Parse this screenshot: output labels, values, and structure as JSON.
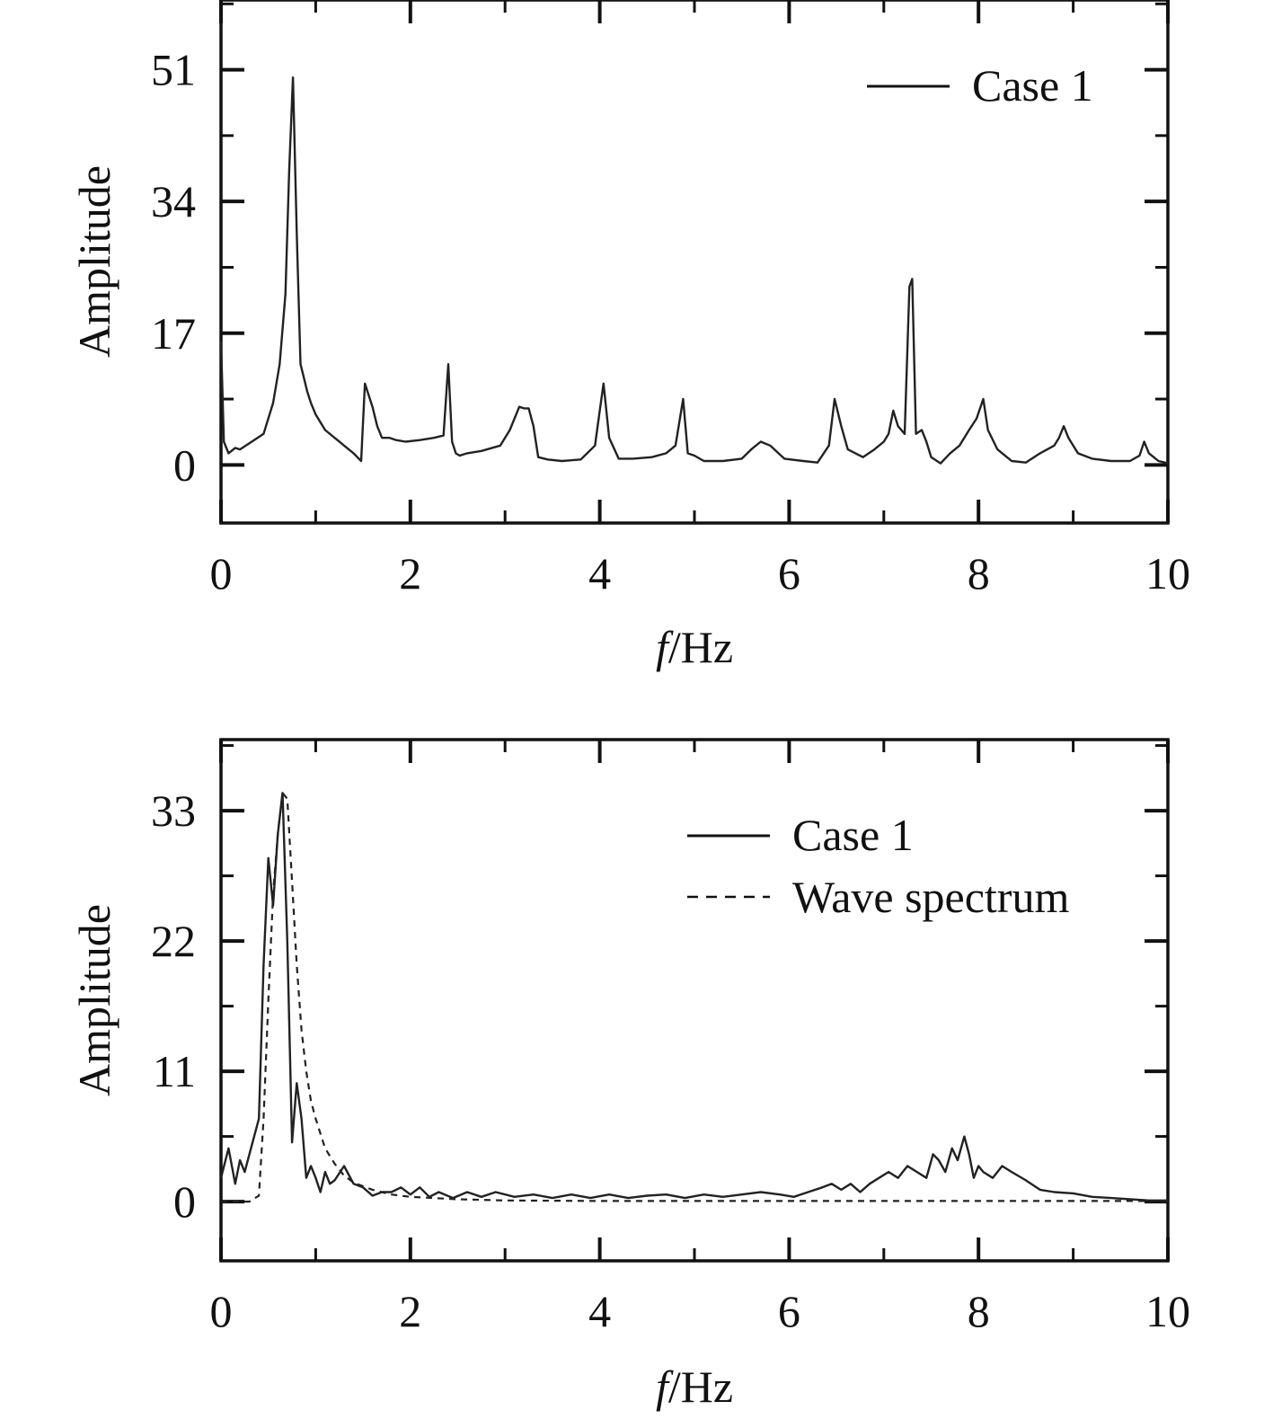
{
  "chart_data": [
    {
      "type": "line",
      "title": "",
      "xlabel_italic": "f",
      "xlabel_rest": "/Hz",
      "ylabel": "Amplitude",
      "xlim": [
        0,
        10
      ],
      "ylim": [
        -7.5,
        60
      ],
      "xticks": [
        0,
        2,
        4,
        6,
        8,
        10
      ],
      "xtick_labels": [
        "0",
        "2",
        "4",
        "6",
        "8",
        "10"
      ],
      "yticks": [
        0,
        17,
        34,
        51
      ],
      "ytick_labels": [
        "0",
        "17",
        "34",
        51
      ],
      "legend_position": "top-right",
      "series": [
        {
          "name": "Case 1",
          "style": "solid",
          "x": [
            0,
            0.03,
            0.08,
            0.15,
            0.2,
            0.25,
            0.35,
            0.45,
            0.55,
            0.62,
            0.68,
            0.72,
            0.76,
            0.8,
            0.84,
            0.88,
            0.91,
            0.95,
            1.0,
            1.1,
            1.2,
            1.3,
            1.4,
            1.48,
            1.52,
            1.56,
            1.6,
            1.65,
            1.7,
            1.78,
            1.85,
            1.95,
            2.1,
            2.25,
            2.35,
            2.4,
            2.44,
            2.48,
            2.52,
            2.6,
            2.75,
            2.95,
            3.05,
            3.15,
            3.2,
            3.25,
            3.3,
            3.35,
            3.45,
            3.6,
            3.8,
            3.95,
            4.0,
            4.04,
            4.1,
            4.2,
            4.35,
            4.55,
            4.7,
            4.8,
            4.88,
            4.93,
            5.0,
            5.1,
            5.3,
            5.5,
            5.6,
            5.7,
            5.8,
            5.95,
            6.15,
            6.3,
            6.42,
            6.48,
            6.55,
            6.62,
            6.7,
            6.78,
            6.9,
            7.0,
            7.05,
            7.1,
            7.15,
            7.22,
            7.27,
            7.3,
            7.34,
            7.4,
            7.45,
            7.5,
            7.6,
            7.7,
            7.8,
            7.9,
            7.98,
            8.05,
            8.1,
            8.2,
            8.35,
            8.5,
            8.65,
            8.8,
            8.85,
            8.9,
            8.95,
            9.05,
            9.2,
            9.4,
            9.6,
            9.7,
            9.75,
            9.8,
            9.9,
            10.0
          ],
          "y": [
            16,
            3,
            1.5,
            2.2,
            2,
            2.4,
            3.2,
            4,
            8,
            13,
            22,
            38,
            50,
            30,
            13,
            11,
            9.5,
            8,
            6.5,
            4.5,
            3.5,
            2.5,
            1.5,
            0.5,
            10.5,
            9,
            7.5,
            5,
            3.5,
            3.5,
            3.2,
            3,
            3.2,
            3.5,
            3.8,
            13,
            3,
            1.5,
            1.2,
            1.5,
            1.8,
            2.5,
            4.5,
            7.5,
            7.3,
            7.3,
            5,
            1,
            0.7,
            0.5,
            0.7,
            2.5,
            7,
            10.5,
            3.5,
            0.8,
            0.8,
            1,
            1.5,
            2.5,
            8.5,
            1.5,
            1.2,
            0.5,
            0.5,
            0.8,
            2,
            3,
            2.5,
            0.8,
            0.5,
            0.3,
            2.5,
            8.5,
            5,
            2,
            1.5,
            1,
            2,
            3,
            4,
            7,
            5,
            4,
            23,
            24,
            4,
            4.5,
            3,
            1,
            0.2,
            1.5,
            2.5,
            4.5,
            6,
            8.5,
            4.5,
            2,
            0.5,
            0.3,
            1.5,
            2.5,
            3.5,
            5,
            3.5,
            1.5,
            0.8,
            0.5,
            0.5,
            1.2,
            3,
            1.5,
            0.5,
            0.2
          ]
        }
      ]
    },
    {
      "type": "line",
      "title": "",
      "xlabel_italic": "f",
      "xlabel_rest": "/Hz",
      "ylabel": "Amplitude",
      "xlim": [
        0,
        10
      ],
      "ylim": [
        -5,
        39
      ],
      "xticks": [
        0,
        2,
        4,
        6,
        8,
        10
      ],
      "xtick_labels": [
        "0",
        "2",
        "4",
        "6",
        "8",
        "10"
      ],
      "yticks": [
        0,
        11,
        22,
        33
      ],
      "ytick_labels": [
        "0",
        "11",
        "22",
        "33"
      ],
      "legend_position": "top-right",
      "series": [
        {
          "name": "Case 1",
          "style": "solid",
          "x": [
            0,
            0.08,
            0.15,
            0.2,
            0.25,
            0.3,
            0.4,
            0.45,
            0.5,
            0.55,
            0.6,
            0.65,
            0.7,
            0.75,
            0.78,
            0.8,
            0.85,
            0.9,
            0.95,
            1.0,
            1.05,
            1.1,
            1.15,
            1.2,
            1.3,
            1.4,
            1.5,
            1.6,
            1.7,
            1.8,
            1.9,
            2.0,
            2.1,
            2.2,
            2.3,
            2.45,
            2.6,
            2.75,
            2.9,
            3.1,
            3.3,
            3.5,
            3.7,
            3.9,
            4.1,
            4.3,
            4.5,
            4.7,
            4.9,
            5.1,
            5.3,
            5.5,
            5.7,
            5.9,
            6.05,
            6.2,
            6.35,
            6.45,
            6.55,
            6.65,
            6.75,
            6.85,
            6.95,
            7.05,
            7.15,
            7.25,
            7.35,
            7.45,
            7.52,
            7.58,
            7.65,
            7.72,
            7.78,
            7.85,
            7.9,
            7.95,
            8.0,
            8.05,
            8.15,
            8.25,
            8.35,
            8.5,
            8.65,
            8.8,
            9.0,
            9.2,
            9.4,
            9.6,
            9.8,
            10.0
          ],
          "y": [
            2,
            4.5,
            1.5,
            3.5,
            2.5,
            4,
            7,
            20,
            29,
            25,
            31,
            34.5,
            22,
            5,
            8,
            10,
            7,
            2,
            3,
            2,
            0.8,
            2.5,
            1.5,
            1.8,
            3,
            1.5,
            1.2,
            0.5,
            0.8,
            0.8,
            1.2,
            0.6,
            1.2,
            0.4,
            0.8,
            0.3,
            0.8,
            0.4,
            0.8,
            0.4,
            0.6,
            0.3,
            0.6,
            0.3,
            0.6,
            0.3,
            0.5,
            0.6,
            0.3,
            0.6,
            0.4,
            0.6,
            0.8,
            0.6,
            0.4,
            0.8,
            1.2,
            1.5,
            1.0,
            1.5,
            0.8,
            1.5,
            2.0,
            2.5,
            2.0,
            3.0,
            2.5,
            2.0,
            4.0,
            3.5,
            2.5,
            4.5,
            3.5,
            5.5,
            4.0,
            2.0,
            3.0,
            2.5,
            2.0,
            3.0,
            2.5,
            1.8,
            1.0,
            0.8,
            0.7,
            0.4,
            0.3,
            0.2,
            0.1,
            0.1
          ]
        },
        {
          "name": "Wave spectrum",
          "style": "dashed",
          "x": [
            0,
            0.3,
            0.4,
            0.45,
            0.5,
            0.55,
            0.6,
            0.65,
            0.7,
            0.75,
            0.8,
            0.85,
            0.9,
            0.95,
            1.0,
            1.1,
            1.2,
            1.3,
            1.4,
            1.6,
            1.8,
            2.0,
            2.5,
            3.0,
            4.0,
            5.0,
            6.0,
            7.0,
            8.0,
            9.0,
            10.0
          ],
          "y": [
            0,
            0,
            0.5,
            7,
            17,
            26,
            31,
            34.5,
            34,
            27,
            20,
            14.5,
            11,
            8.5,
            7,
            4.5,
            3.2,
            2.2,
            1.6,
            1.0,
            0.6,
            0.4,
            0.2,
            0.1,
            0.05,
            0.05,
            0.05,
            0.05,
            0.05,
            0.05,
            0.05
          ]
        }
      ]
    }
  ]
}
